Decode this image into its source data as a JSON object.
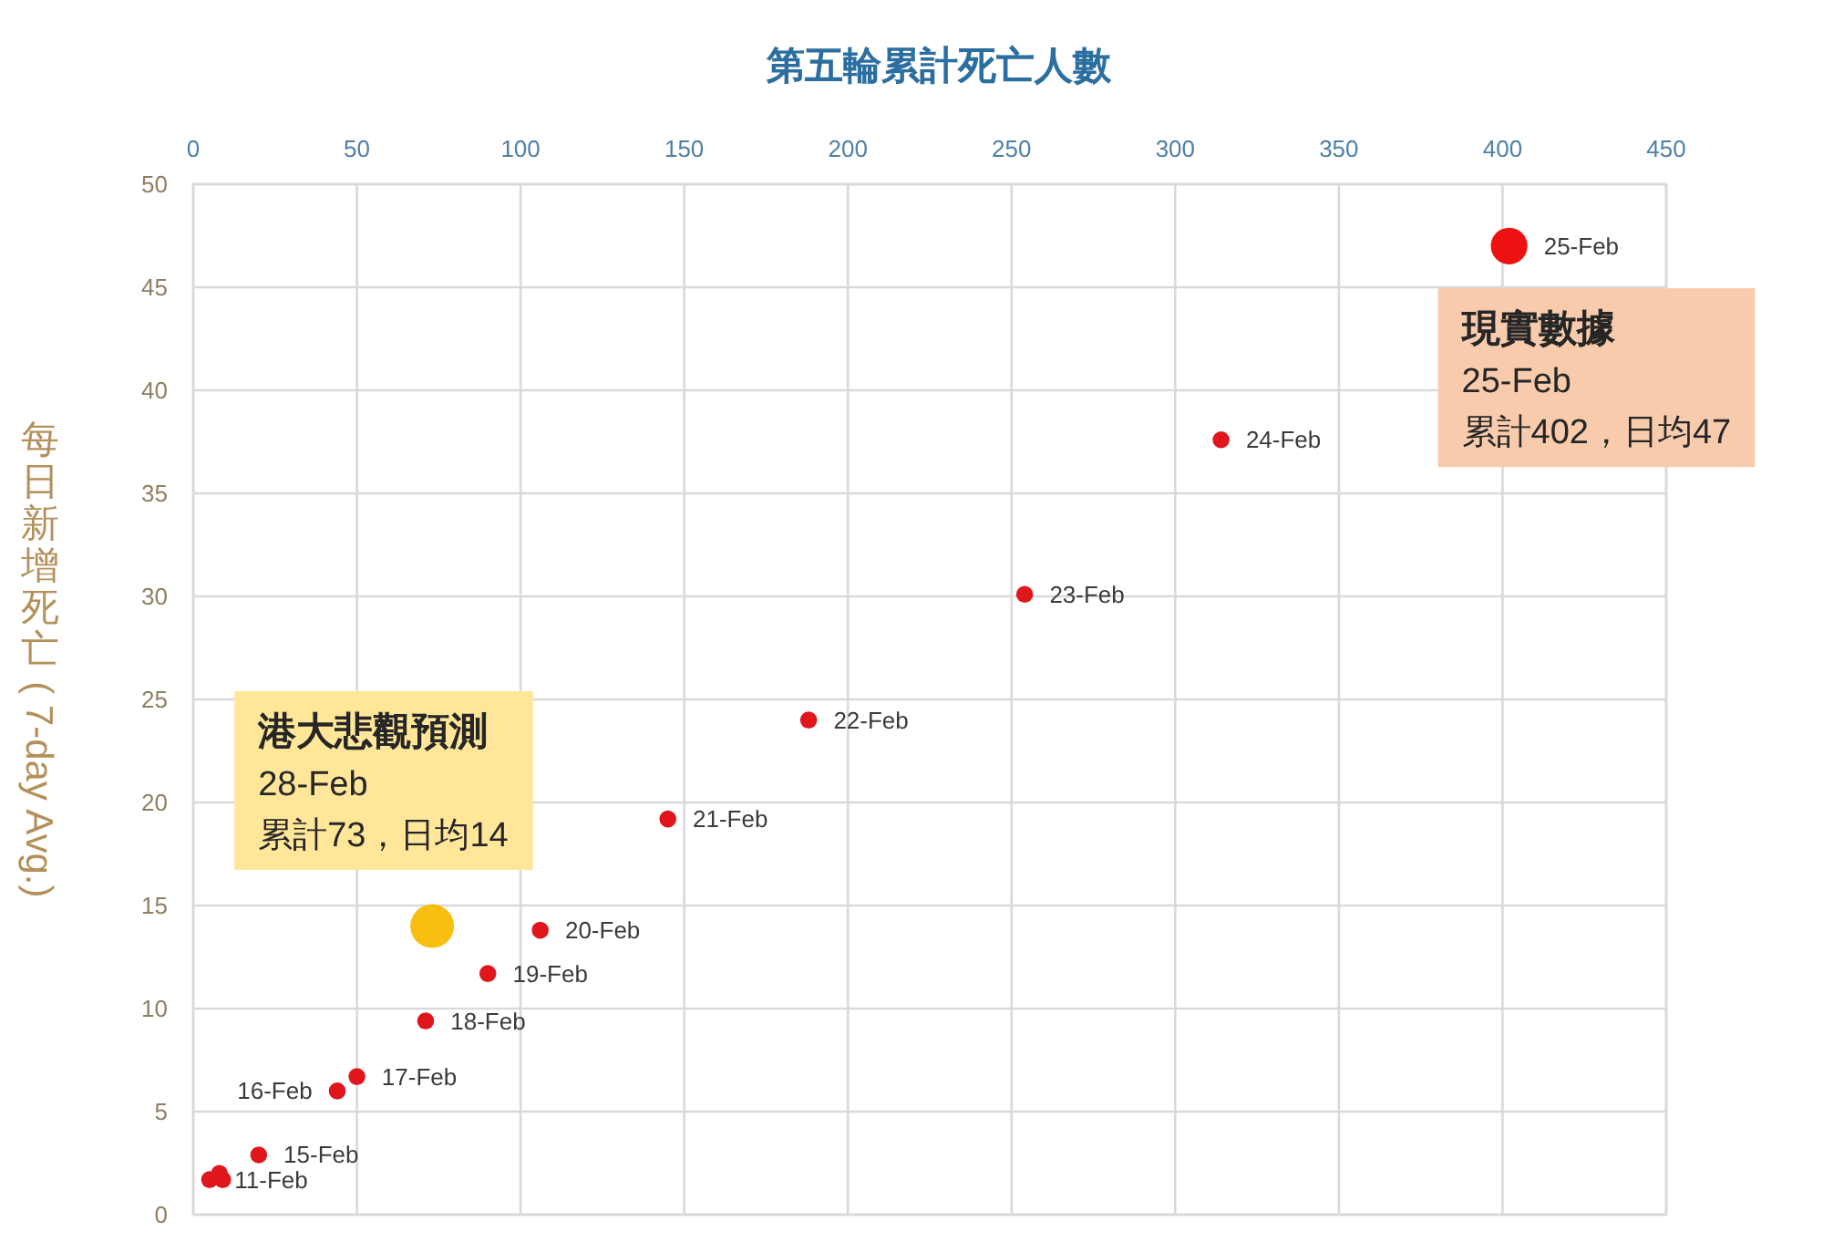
{
  "chart_data": {
    "type": "bubble",
    "xlabel": "第五輪累計死亡人數",
    "ylabel": "每日新增死亡 ( 7-day Avg.)",
    "xlim": [
      0,
      450
    ],
    "xticks": [
      0,
      50,
      100,
      150,
      200,
      250,
      300,
      350,
      400,
      450
    ],
    "ylim": [
      0,
      50
    ],
    "yticks": [
      0,
      5,
      10,
      15,
      20,
      25,
      30,
      35,
      40,
      45,
      50
    ],
    "grid": true,
    "marker": "circle",
    "series": [
      {
        "color": "#e0161d",
        "x": [
          5,
          8,
          9,
          20,
          44,
          50,
          71,
          90,
          106,
          145,
          188,
          254,
          314
        ],
        "values": [
          1.7,
          2.0,
          1.7,
          2.9,
          6.0,
          6.7,
          9.4,
          11.7,
          13.8,
          19.2,
          24.0,
          30.1,
          37.6
        ],
        "sizes": [
          0.15,
          0.15,
          0.15,
          0.15,
          0.15,
          0.15,
          0.15,
          0.15,
          0.15,
          0.15,
          0.15,
          0.15,
          0.15
        ]
      },
      {
        "color": "#ee1111",
        "x": [
          402
        ],
        "values": [
          47
        ],
        "sizes": [
          0.7
        ]
      },
      {
        "color": "#f9bf10",
        "x": [
          73
        ],
        "values": [
          14
        ],
        "sizes": [
          1
        ]
      }
    ],
    "annotations": [
      {
        "text": "11-Feb",
        "x": 5,
        "y": 1.7
      },
      {
        "text": "15-Feb",
        "x": 20,
        "y": 2.9
      },
      {
        "text": "16-Feb",
        "x": 44,
        "y": 6.0
      },
      {
        "text": "17-Feb",
        "x": 50,
        "y": 6.7
      },
      {
        "text": "18-Feb",
        "x": 71,
        "y": 9.4
      },
      {
        "text": "19-Feb",
        "x": 90,
        "y": 11.7
      },
      {
        "text": "20-Feb",
        "x": 106,
        "y": 13.8
      },
      {
        "text": "21-Feb",
        "x": 145,
        "y": 19.2
      },
      {
        "text": "22-Feb",
        "x": 188,
        "y": 24.0
      },
      {
        "text": "23-Feb",
        "x": 254,
        "y": 30.1
      },
      {
        "text": "24-Feb",
        "x": 314,
        "y": 37.6
      },
      {
        "text": "25-Feb",
        "x": 402,
        "y": 47
      },
      "現實數據\n25-Feb\n累計402，日均47",
      "港大悲觀預測\n28-Feb\n累計73，日均14"
    ]
  }
}
